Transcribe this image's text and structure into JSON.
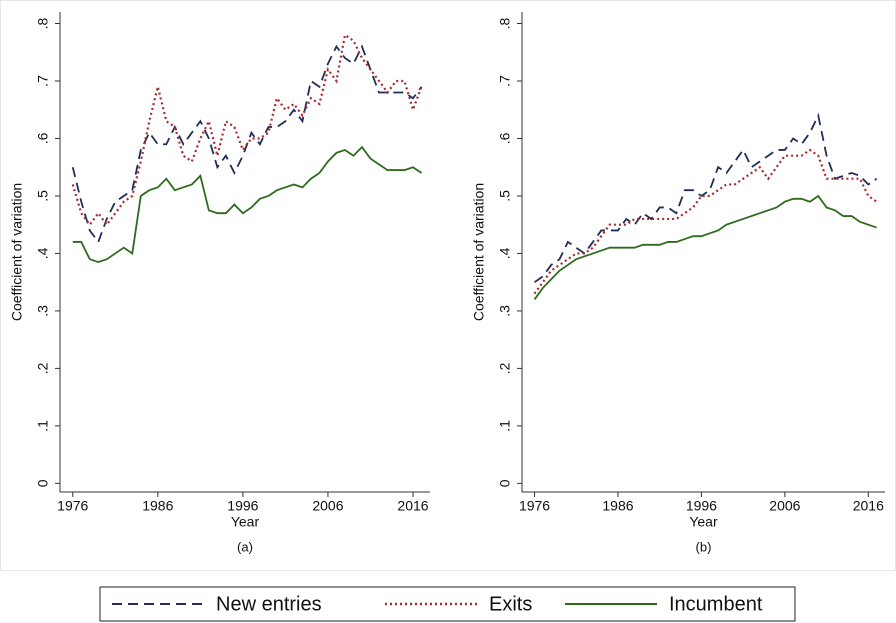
{
  "chart_data": [
    {
      "type": "line",
      "caption": "(a)",
      "y_label": "Coefficient of variation",
      "x_label": "Year",
      "x": [
        1976,
        1977,
        1978,
        1979,
        1980,
        1981,
        1982,
        1983,
        1984,
        1985,
        1986,
        1987,
        1988,
        1989,
        1990,
        1991,
        1992,
        1993,
        1994,
        1995,
        1996,
        1997,
        1998,
        1999,
        2000,
        2001,
        2002,
        2003,
        2004,
        2005,
        2006,
        2007,
        2008,
        2009,
        2010,
        2011,
        2012,
        2013,
        2014,
        2015,
        2016,
        2017
      ],
      "series": [
        {
          "name": "New entries",
          "color": "#1f2d5a",
          "style": "dashed",
          "values": [
            0.55,
            0.49,
            0.44,
            0.42,
            0.46,
            0.49,
            0.5,
            0.51,
            0.58,
            0.61,
            0.59,
            0.59,
            0.62,
            0.59,
            0.61,
            0.63,
            0.6,
            0.55,
            0.57,
            0.54,
            0.57,
            0.61,
            0.59,
            0.62,
            0.62,
            0.63,
            0.65,
            0.63,
            0.7,
            0.69,
            0.73,
            0.76,
            0.74,
            0.73,
            0.76,
            0.72,
            0.68,
            0.68,
            0.68,
            0.68,
            0.67,
            0.69
          ]
        },
        {
          "name": "Exits",
          "color": "#a52a2a",
          "style": "dotted",
          "values": [
            0.52,
            0.47,
            0.45,
            0.47,
            0.45,
            0.47,
            0.49,
            0.5,
            0.56,
            0.63,
            0.69,
            0.63,
            0.62,
            0.57,
            0.56,
            0.6,
            0.63,
            0.57,
            0.63,
            0.62,
            0.58,
            0.6,
            0.6,
            0.61,
            0.67,
            0.65,
            0.66,
            0.64,
            0.67,
            0.66,
            0.72,
            0.7,
            0.78,
            0.77,
            0.74,
            0.72,
            0.7,
            0.68,
            0.7,
            0.7,
            0.65,
            0.69
          ]
        },
        {
          "name": "Incumbent",
          "color": "#2e6b1e",
          "style": "solid",
          "values": [
            0.42,
            0.42,
            0.39,
            0.385,
            0.39,
            0.4,
            0.41,
            0.4,
            0.5,
            0.51,
            0.515,
            0.53,
            0.51,
            0.515,
            0.52,
            0.535,
            0.475,
            0.47,
            0.47,
            0.485,
            0.47,
            0.48,
            0.495,
            0.5,
            0.51,
            0.515,
            0.52,
            0.515,
            0.53,
            0.54,
            0.56,
            0.575,
            0.58,
            0.57,
            0.585,
            0.565,
            0.555,
            0.545,
            0.545,
            0.545,
            0.55,
            0.54
          ]
        }
      ],
      "xlim": [
        1974.5,
        2018
      ],
      "xticks": [
        1976,
        1986,
        1996,
        2006,
        2016
      ],
      "ylim": [
        -0.015,
        0.82
      ],
      "yticks": [
        0,
        {
          "value": 0.1,
          "label": ".1"
        },
        {
          "value": 0.2,
          "label": ".2"
        },
        {
          "value": 0.3,
          "label": ".3"
        },
        {
          "value": 0.4,
          "label": ".4"
        },
        {
          "value": 0.5,
          "label": ".5"
        },
        {
          "value": 0.6,
          "label": ".6"
        },
        {
          "value": 0.7,
          "label": ".7"
        },
        {
          "value": 0.8,
          "label": ".8"
        }
      ],
      "grid": false
    },
    {
      "type": "line",
      "caption": "(b)",
      "y_label": "Coefficient of variation",
      "x_label": "Year",
      "x": [
        1976,
        1977,
        1978,
        1979,
        1980,
        1981,
        1982,
        1983,
        1984,
        1985,
        1986,
        1987,
        1988,
        1989,
        1990,
        1991,
        1992,
        1993,
        1994,
        1995,
        1996,
        1997,
        1998,
        1999,
        2000,
        2001,
        2002,
        2003,
        2004,
        2005,
        2006,
        2007,
        2008,
        2009,
        2010,
        2011,
        2012,
        2013,
        2014,
        2015,
        2016,
        2017
      ],
      "series": [
        {
          "color": "#1f2d5a",
          "style": "dashed",
          "values": [
            0.35,
            0.36,
            0.38,
            0.39,
            0.42,
            0.41,
            0.4,
            0.42,
            0.44,
            0.44,
            0.44,
            0.46,
            0.45,
            0.47,
            0.46,
            0.48,
            0.48,
            0.47,
            0.51,
            0.51,
            0.5,
            0.51,
            0.55,
            0.54,
            0.56,
            0.58,
            0.55,
            0.56,
            0.57,
            0.58,
            0.58,
            0.6,
            0.59,
            0.61,
            0.64,
            0.57,
            0.53,
            0.535,
            0.54,
            0.535,
            0.52,
            0.53
          ]
        },
        {
          "color": "#a52a2a",
          "style": "dotted",
          "values": [
            0.33,
            0.35,
            0.37,
            0.38,
            0.39,
            0.4,
            0.4,
            0.41,
            0.43,
            0.45,
            0.45,
            0.45,
            0.46,
            0.46,
            0.46,
            0.46,
            0.46,
            0.46,
            0.47,
            0.48,
            0.5,
            0.5,
            0.51,
            0.52,
            0.52,
            0.53,
            0.54,
            0.55,
            0.53,
            0.55,
            0.57,
            0.57,
            0.57,
            0.58,
            0.57,
            0.53,
            0.53,
            0.53,
            0.53,
            0.53,
            0.5,
            0.49
          ]
        },
        {
          "color": "#2e6b1e",
          "style": "solid",
          "values": [
            0.32,
            0.34,
            0.355,
            0.37,
            0.38,
            0.39,
            0.395,
            0.4,
            0.405,
            0.41,
            0.41,
            0.41,
            0.41,
            0.415,
            0.415,
            0.415,
            0.42,
            0.42,
            0.425,
            0.43,
            0.43,
            0.435,
            0.44,
            0.45,
            0.455,
            0.46,
            0.465,
            0.47,
            0.475,
            0.48,
            0.49,
            0.495,
            0.495,
            0.49,
            0.5,
            0.48,
            0.475,
            0.465,
            0.465,
            0.455,
            0.45,
            0.445
          ]
        }
      ],
      "xlim": [
        1974.5,
        2018
      ],
      "xticks": [
        1976,
        1986,
        1996,
        2006,
        2016
      ],
      "ylim": [
        -0.015,
        0.82
      ],
      "yticks": [
        0,
        {
          "value": 0.1,
          "label": ".1"
        },
        {
          "value": 0.2,
          "label": ".2"
        },
        {
          "value": 0.3,
          "label": ".3"
        },
        {
          "value": 0.4,
          "label": ".4"
        },
        {
          "value": 0.5,
          "label": ".5"
        },
        {
          "value": 0.6,
          "label": ".6"
        },
        {
          "value": 0.7,
          "label": ".7"
        },
        {
          "value": 0.8,
          "label": ".8"
        }
      ],
      "grid": false
    }
  ]
}
